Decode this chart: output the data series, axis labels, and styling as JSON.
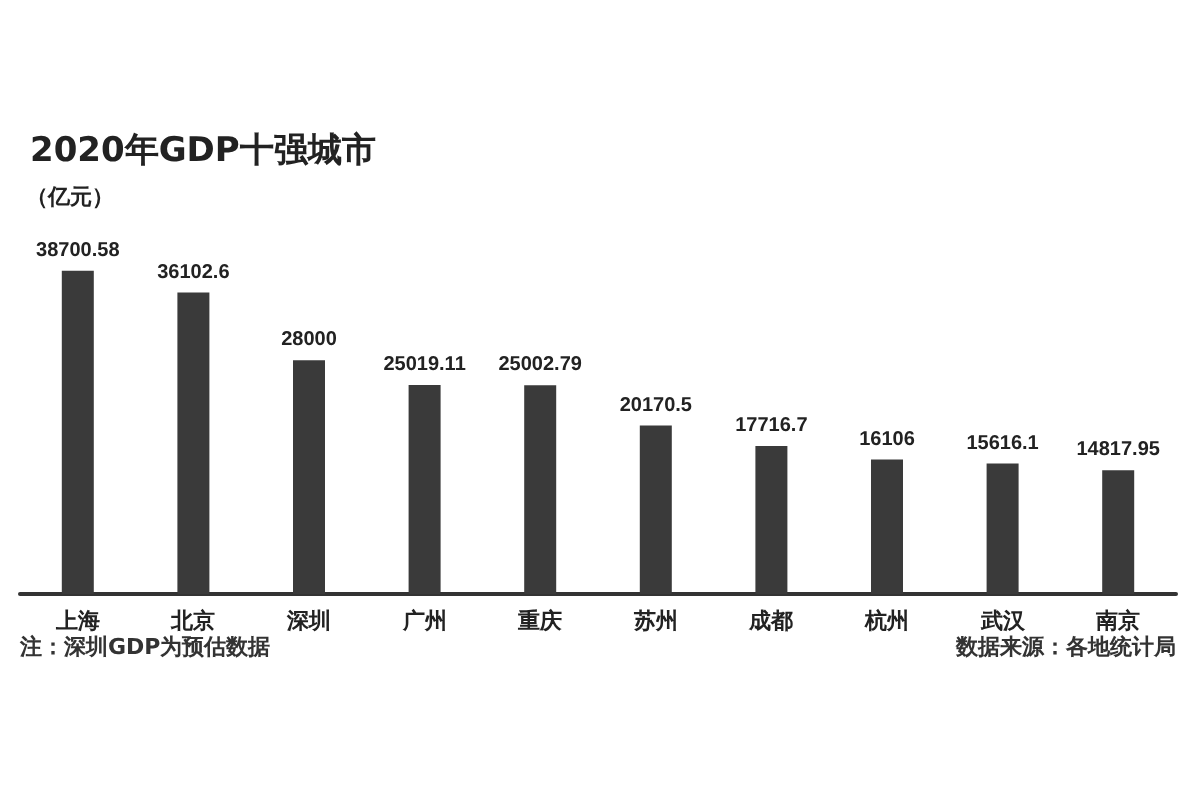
{
  "chart_data": {
    "type": "bar",
    "title": "2020年GDP十强城市",
    "ylabel": "（亿元）",
    "categories": [
      "上海",
      "北京",
      "深圳",
      "广州",
      "重庆",
      "苏州",
      "成都",
      "杭州",
      "武汉",
      "南京"
    ],
    "values": [
      38700.58,
      36102.6,
      28000,
      25019.11,
      25002.79,
      20170.5,
      17716.7,
      16106,
      15616.1,
      14817.95
    ],
    "color": "#3a3a3a",
    "data_labels": true,
    "annotations": [
      "注：深圳GDP为预估数据",
      "数据来源：各地统计局"
    ]
  }
}
